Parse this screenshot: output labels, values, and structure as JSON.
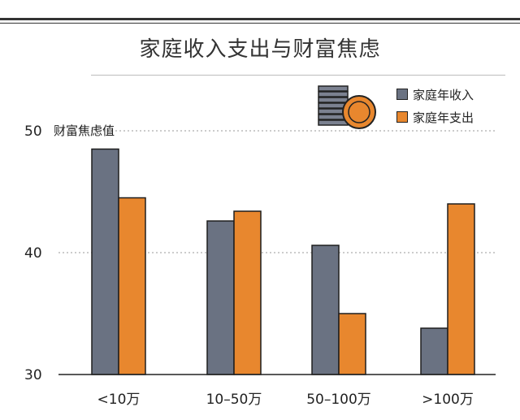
{
  "chart_data": {
    "type": "bar",
    "title": "家庭收入支出与财富焦虑",
    "ylabel": "财富焦虑值",
    "xlabel": "",
    "ylim": [
      30,
      50
    ],
    "yticks": [
      30,
      40,
      50
    ],
    "grid": true,
    "legend_position": "top-right",
    "categories": [
      "<10万",
      "10–50万",
      "50–100万",
      ">100万"
    ],
    "series": [
      {
        "name": "家庭年收入",
        "color": "#6a7282",
        "values": [
          48.5,
          42.6,
          40.6,
          33.8
        ]
      },
      {
        "name": "家庭年支出",
        "color": "#e8872e",
        "values": [
          44.5,
          43.4,
          35.0,
          44.0
        ]
      }
    ]
  },
  "icons": {
    "legend_graphic": "coin-stack-icon"
  }
}
